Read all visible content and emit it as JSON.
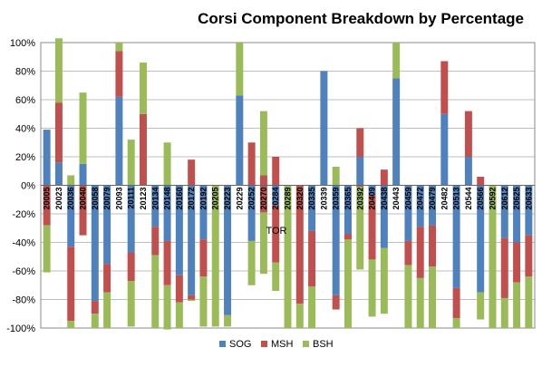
{
  "chart_data": {
    "type": "bar",
    "stacked": true,
    "title": "Corsi Component Breakdown by Percentage",
    "xlabel": "",
    "ylabel": "",
    "ylim": [
      -100,
      100
    ],
    "y_ticks": [
      "100%",
      "80%",
      "60%",
      "40%",
      "20%",
      "0%",
      "-20%",
      "-40%",
      "-60%",
      "-80%",
      "-100%"
    ],
    "grid": true,
    "legend_position": "bottom",
    "annotation": "TOR",
    "categories": [
      "20005",
      "20023",
      "20036",
      "20040",
      "20058",
      "20079",
      "20093",
      "20111",
      "20123",
      "20134",
      "20148",
      "20160",
      "20172",
      "20192",
      "20205",
      "20223",
      "20229",
      "20252",
      "20270",
      "20284",
      "20289",
      "20320",
      "20335",
      "20339",
      "20359",
      "20365",
      "20392",
      "20409",
      "20438",
      "20443",
      "20459",
      "20472",
      "20479",
      "20482",
      "20513",
      "20544",
      "20566",
      "20592",
      "20612",
      "20625",
      "20633"
    ],
    "colors": {
      "SOG": "#4f81bd",
      "MSH": "#c0504d",
      "BSH": "#9bbb59"
    },
    "series": [
      {
        "name": "SOG",
        "pos": [
          39,
          16,
          0,
          15,
          0,
          0,
          62,
          0,
          0,
          0,
          0,
          0,
          0,
          0,
          0,
          0,
          63,
          0,
          0,
          0,
          0,
          0,
          0,
          80,
          0,
          0,
          20,
          0,
          0,
          75,
          0,
          0,
          0,
          50,
          0,
          20,
          0,
          0,
          0,
          0,
          0
        ],
        "neg": [
          0,
          0,
          -43,
          0,
          -81,
          -55,
          0,
          -47,
          0,
          -29,
          -39,
          -63,
          -77,
          -38,
          0,
          -91,
          0,
          -39,
          0,
          -14,
          0,
          0,
          -32,
          0,
          -77,
          -34,
          0,
          -7,
          -44,
          0,
          -39,
          -29,
          -28,
          0,
          -72,
          0,
          -75,
          0,
          -37,
          -40,
          -35
        ]
      },
      {
        "name": "MSH",
        "pos": [
          0,
          42,
          0,
          0,
          0,
          0,
          32,
          0,
          50,
          0,
          0,
          0,
          18,
          0,
          0,
          0,
          0,
          30,
          7,
          20,
          0,
          0,
          0,
          0,
          0,
          0,
          20,
          0,
          11,
          0,
          0,
          0,
          0,
          37,
          0,
          32,
          6,
          0,
          0,
          0,
          0
        ],
        "neg": [
          -28,
          0,
          -52,
          -35,
          -9,
          -20,
          0,
          -20,
          0,
          -20,
          -31,
          -19,
          -3,
          -26,
          0,
          0,
          0,
          0,
          -19,
          -40,
          0,
          -83,
          -39,
          0,
          -10,
          -4,
          -1,
          -45,
          0,
          0,
          -17,
          -36,
          -29,
          0,
          -21,
          0,
          0,
          0,
          -42,
          -28,
          -29
        ]
      },
      {
        "name": "BSH",
        "pos": [
          0,
          45,
          7,
          50,
          0,
          0,
          6,
          32,
          36,
          0,
          30,
          0,
          0,
          0,
          0,
          0,
          37,
          0,
          45,
          0,
          0,
          0,
          0,
          0,
          13,
          0,
          0,
          0,
          0,
          25,
          0,
          0,
          0,
          0,
          0,
          0,
          0,
          0,
          0,
          0,
          0
        ],
        "neg": [
          -33,
          0,
          -5,
          0,
          -10,
          -25,
          0,
          -32,
          0,
          -51,
          -31,
          -18,
          -1,
          -35,
          -99,
          -8,
          0,
          -31,
          -43,
          -20,
          -100,
          -17,
          -29,
          0,
          0,
          -62,
          -58,
          -40,
          -46,
          0,
          -44,
          -35,
          -43,
          0,
          -7,
          0,
          -19,
          -100,
          -21,
          -32,
          -36
        ]
      }
    ]
  }
}
